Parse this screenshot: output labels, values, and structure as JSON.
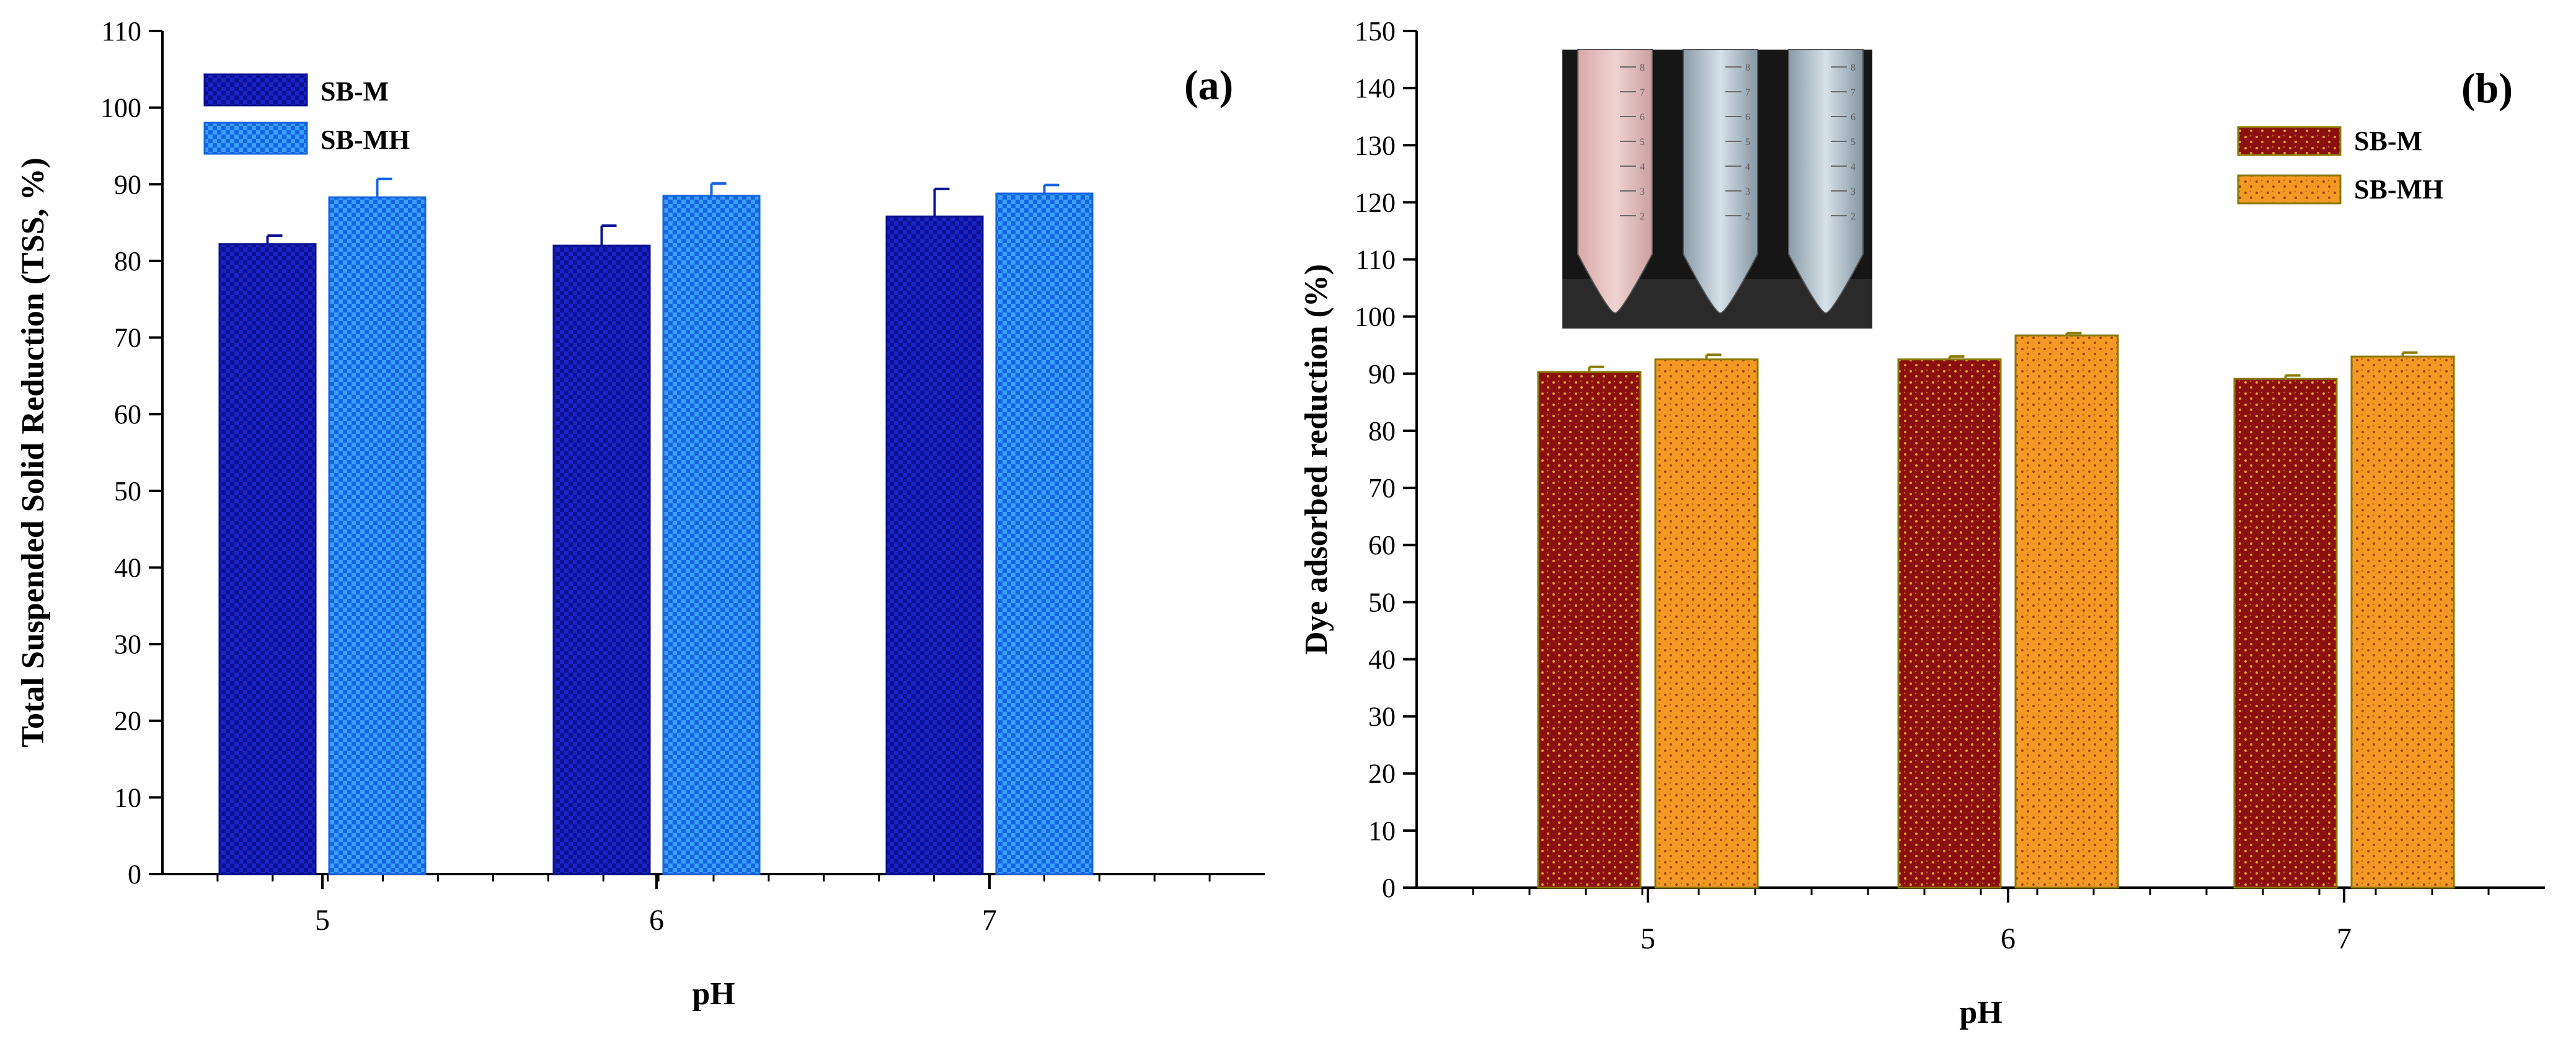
{
  "chart_data": [
    {
      "type": "bar",
      "panel_label": "(a)",
      "categories": [
        "5",
        "6",
        "7"
      ],
      "series": [
        {
          "name": "SB-M",
          "values": [
            82.2,
            82.0,
            85.8
          ],
          "errors": [
            1.1,
            2.6,
            3.6
          ],
          "color": "#1a23c8"
        },
        {
          "name": "SB-MH",
          "values": [
            88.3,
            88.5,
            88.8
          ],
          "errors": [
            2.4,
            1.6,
            1.1
          ],
          "color": "#1f8cff"
        }
      ],
      "xlabel": "pH",
      "ylabel": "Total Suspended Solid Reduction (TSS, %)",
      "ylim": [
        0,
        110
      ],
      "yticks": [
        0,
        10,
        20,
        30,
        40,
        50,
        60,
        70,
        80,
        90,
        100,
        110
      ],
      "legend_position": "top-left",
      "grid": false
    },
    {
      "type": "bar",
      "panel_label": "(b)",
      "categories": [
        "5",
        "6",
        "7"
      ],
      "series": [
        {
          "name": "SB-M",
          "values": [
            90.3,
            92.5,
            89.1
          ],
          "errors": [
            0.9,
            0.5,
            0.6
          ],
          "color": "#8b0f0f"
        },
        {
          "name": "SB-MH",
          "values": [
            92.5,
            96.7,
            93.0
          ],
          "errors": [
            0.8,
            0.4,
            0.7
          ],
          "color": "#f28c1e"
        }
      ],
      "xlabel": "pH",
      "ylabel": "Dye adsorbed reduction (%)",
      "ylim": [
        0,
        150
      ],
      "yticks": [
        0,
        10,
        20,
        30,
        40,
        50,
        60,
        70,
        80,
        90,
        100,
        110,
        120,
        130,
        140,
        150
      ],
      "legend_position": "top-right",
      "grid": false,
      "inset": {
        "tube_tick_labels": [
          "8",
          "7",
          "6",
          "5",
          "4",
          "3",
          "2"
        ]
      }
    }
  ]
}
